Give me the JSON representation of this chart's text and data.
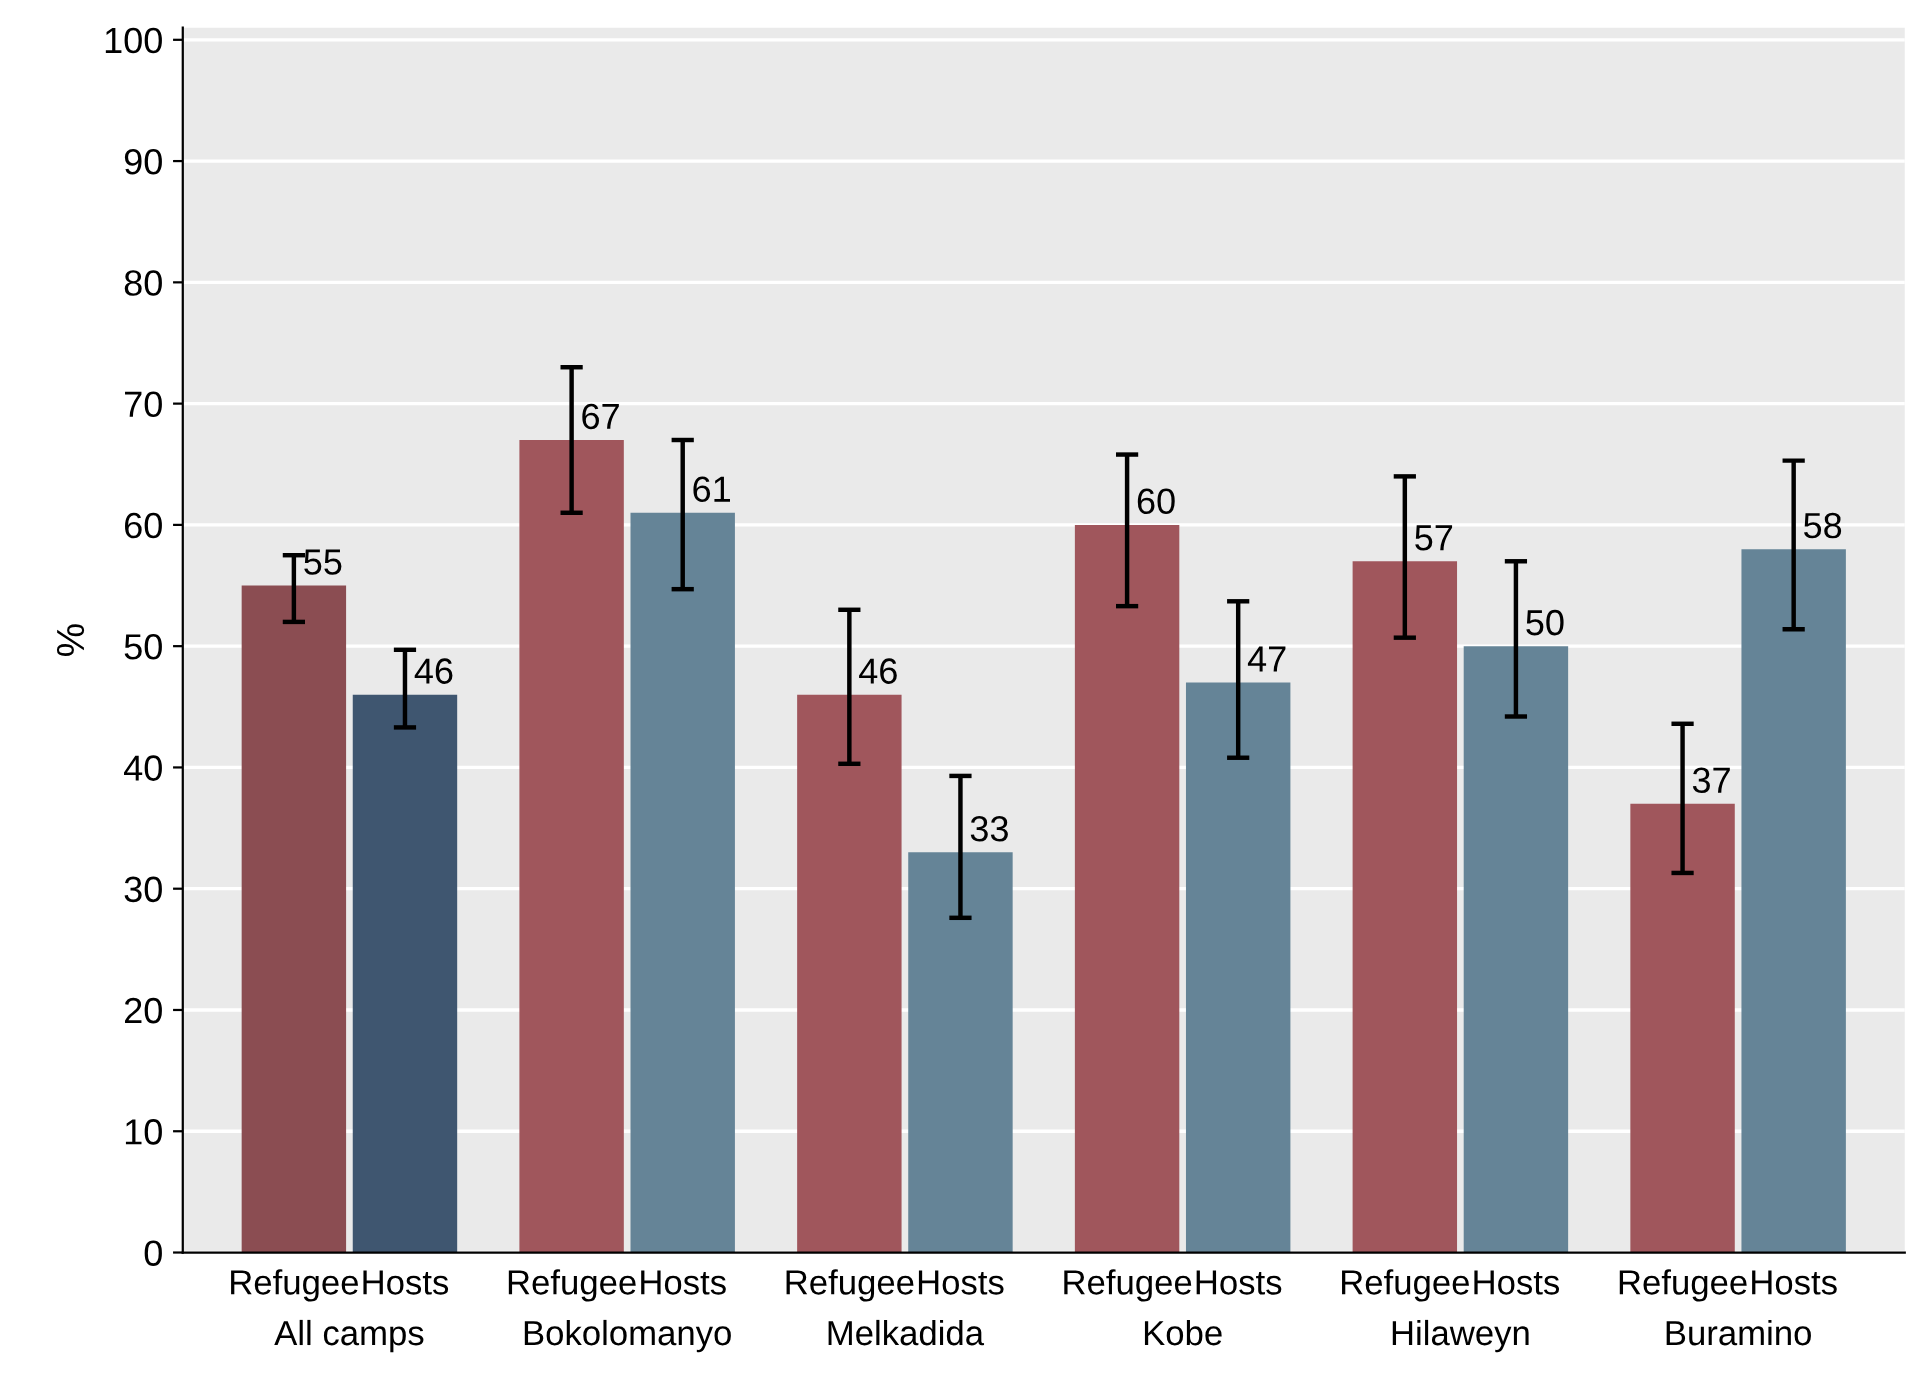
{
  "chart_data": {
    "type": "bar",
    "ylabel": "%",
    "categories": [
      "All camps",
      "Bokolomanyo",
      "Melkadida",
      "Kobe",
      "Hilaweyn",
      "Buramino"
    ],
    "series": [
      {
        "name": "Refugee",
        "colors": [
          "#8b4d52",
          "#a0565c",
          "#a0565c",
          "#a0565c",
          "#a0565c",
          "#a0565c"
        ],
        "values": [
          55,
          67,
          46,
          60,
          57,
          37
        ],
        "errors": [
          [
            52,
            57.5
          ],
          [
            61,
            73
          ],
          [
            40.3,
            53
          ],
          [
            53.3,
            65.8
          ],
          [
            50.7,
            64
          ],
          [
            31.3,
            43.6
          ]
        ]
      },
      {
        "name": "Hosts",
        "colors": [
          "#3f5670",
          "#658497",
          "#658497",
          "#658497",
          "#658497",
          "#658497"
        ],
        "values": [
          46,
          61,
          33,
          47,
          50,
          58
        ],
        "errors": [
          [
            43.3,
            49.7
          ],
          [
            54.7,
            67
          ],
          [
            27.6,
            39.3
          ],
          [
            40.8,
            53.7
          ],
          [
            44.2,
            57
          ],
          [
            51.4,
            65.3
          ]
        ]
      }
    ],
    "ylim": [
      0,
      101
    ],
    "yticks": [
      0,
      10,
      20,
      30,
      40,
      50,
      60,
      70,
      80,
      90,
      100
    ],
    "grid": "y",
    "data_labels": true
  }
}
